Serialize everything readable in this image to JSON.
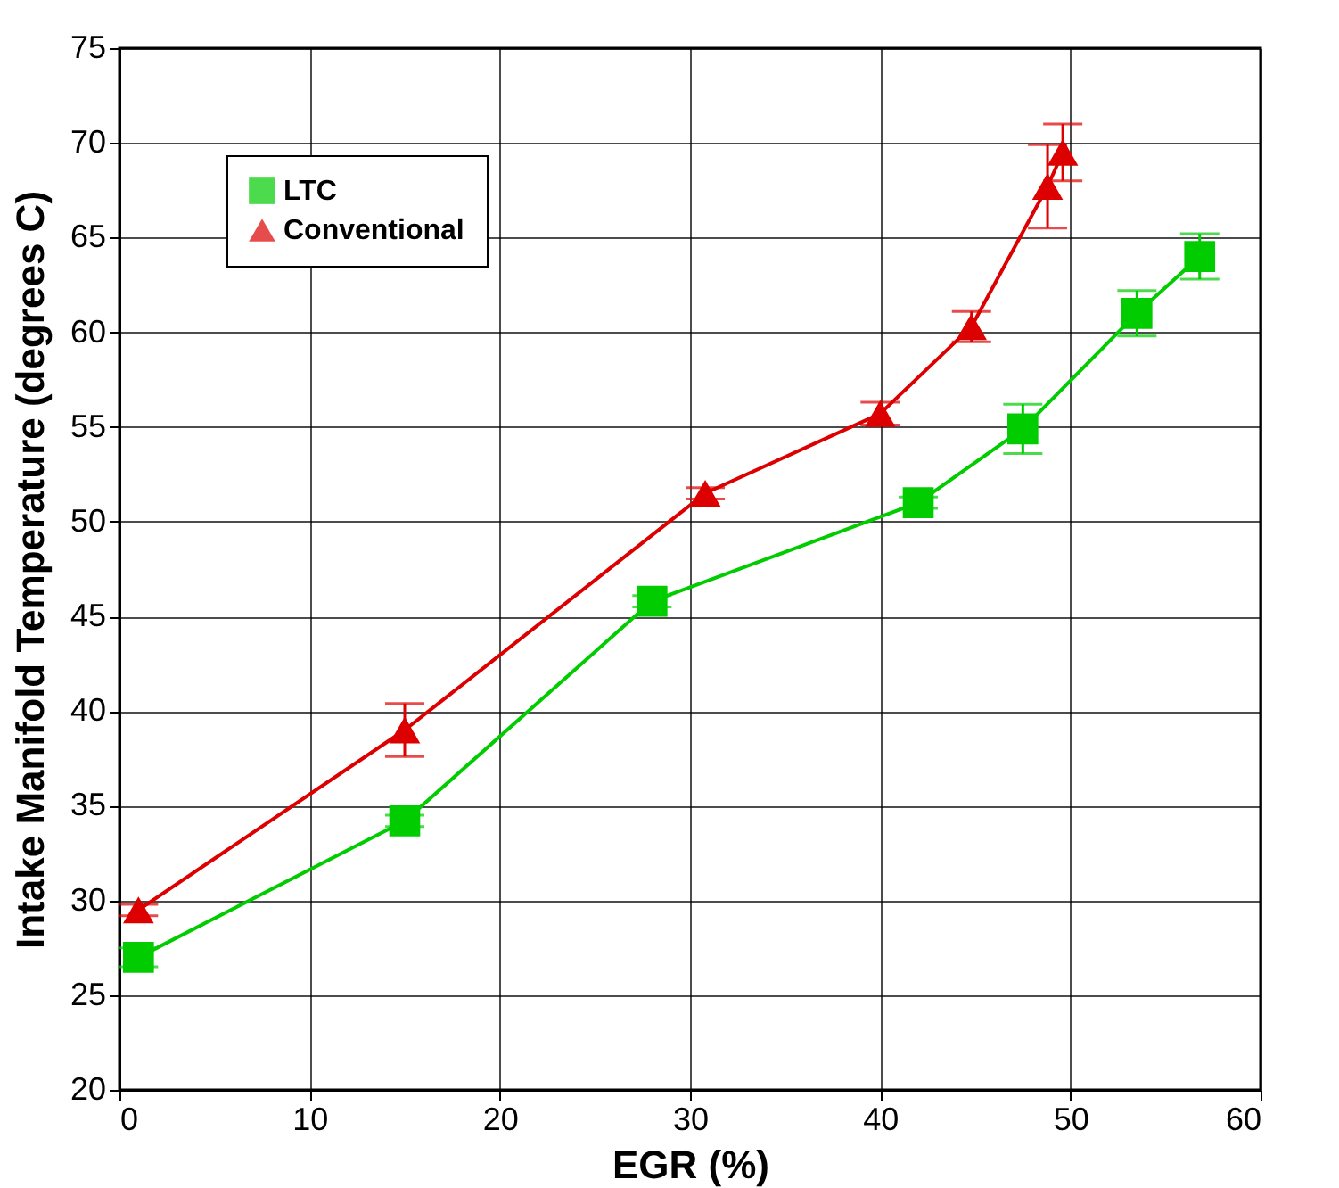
{
  "chart_data": {
    "type": "line",
    "xlabel": "EGR (%)",
    "ylabel": "Intake Manifold Temperature (degrees C)",
    "xlim": [
      0,
      60
    ],
    "xticks": [
      0,
      10,
      20,
      30,
      40,
      50,
      60
    ],
    "ylim": [
      20,
      75
    ],
    "yticks": [
      20,
      25,
      30,
      35,
      40,
      45,
      50,
      55,
      60,
      65,
      70,
      75
    ],
    "grid": true,
    "legend": "top left",
    "line_style": "solid",
    "series": [
      {
        "name": "LTC",
        "color": "#00cc00",
        "marker": "square",
        "x": [
          1,
          15,
          28,
          42,
          47.5,
          53.5,
          56.8
        ],
        "values": [
          27,
          34.2,
          45.8,
          51,
          54.9,
          61,
          64
        ],
        "errors": [
          0.5,
          0.3,
          0.3,
          0.3,
          1.3,
          1.2,
          1.2
        ]
      },
      {
        "name": "Conventional",
        "color": "#dd0000",
        "marker": "triangle",
        "x": [
          1,
          15,
          30.8,
          40,
          44.8,
          48.8,
          49.6
        ],
        "values": [
          29.5,
          39,
          51.5,
          55.7,
          60.3,
          67.7,
          69.5
        ],
        "errors": [
          0.3,
          1.4,
          0.3,
          0.6,
          0.8,
          2.2,
          1.5
        ]
      }
    ]
  }
}
